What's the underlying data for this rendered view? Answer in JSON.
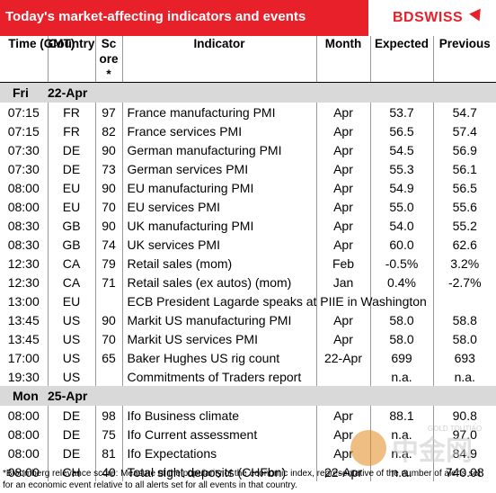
{
  "header": {
    "title": "Today's market-affecting indicators and events",
    "logo_part1": "BD",
    "logo_part2": "SWISS",
    "accent_color": "#e8202a"
  },
  "columns": {
    "time": "Time (GMT)",
    "country": "Country",
    "score": "Score*",
    "indicator": "Indicator",
    "month": "Month",
    "expected": "Expected",
    "previous": "Previous"
  },
  "days": [
    {
      "day": "Fri",
      "date": "22-Apr",
      "rows": [
        {
          "time": "07:15",
          "country": "FR",
          "score": "97",
          "indicator": "France manufacturing PMI",
          "month": "Apr",
          "expected": "53.7",
          "previous": "54.7"
        },
        {
          "time": "07:15",
          "country": "FR",
          "score": "82",
          "indicator": "France services PMI",
          "month": "Apr",
          "expected": "56.5",
          "previous": "57.4"
        },
        {
          "time": "07:30",
          "country": "DE",
          "score": "90",
          "indicator": "German manufacturing PMI",
          "month": "Apr",
          "expected": "54.5",
          "previous": "56.9"
        },
        {
          "time": "07:30",
          "country": "DE",
          "score": "73",
          "indicator": "German services PMI",
          "month": "Apr",
          "expected": "55.3",
          "previous": "56.1"
        },
        {
          "time": "08:00",
          "country": "EU",
          "score": "90",
          "indicator": "EU manufacturing PMI",
          "month": "Apr",
          "expected": "54.9",
          "previous": "56.5"
        },
        {
          "time": "08:00",
          "country": "EU",
          "score": "70",
          "indicator": "EU services PMI",
          "month": "Apr",
          "expected": "55.0",
          "previous": "55.6"
        },
        {
          "time": "08:30",
          "country": "GB",
          "score": "90",
          "indicator": "UK manufacturing PMI",
          "month": "Apr",
          "expected": "54.0",
          "previous": "55.2"
        },
        {
          "time": "08:30",
          "country": "GB",
          "score": "74",
          "indicator": "UK services PMI",
          "month": "Apr",
          "expected": "60.0",
          "previous": "62.6"
        },
        {
          "time": "12:30",
          "country": "CA",
          "score": "79",
          "indicator": "Retail sales (mom)",
          "month": "Feb",
          "expected": "-0.5%",
          "previous": "3.2%"
        },
        {
          "time": "12:30",
          "country": "CA",
          "score": "71",
          "indicator": "Retail sales (ex autos) (mom)",
          "month": "Jan",
          "expected": "0.4%",
          "previous": "-2.7%"
        },
        {
          "time": "13:00",
          "country": "EU",
          "score": "",
          "indicator": "ECB President Lagarde speaks at PIIE in Washington",
          "month": "",
          "expected": "",
          "previous": ""
        },
        {
          "time": "13:45",
          "country": "US",
          "score": "90",
          "indicator": "Markit US manufacturing PMI",
          "month": "Apr",
          "expected": "58.0",
          "previous": "58.8"
        },
        {
          "time": "13:45",
          "country": "US",
          "score": "70",
          "indicator": "Markit US services PMI",
          "month": "Apr",
          "expected": "58.0",
          "previous": "58.0"
        },
        {
          "time": "17:00",
          "country": "US",
          "score": "65",
          "indicator": "Baker Hughes US rig count",
          "month": "22-Apr",
          "expected": "699",
          "previous": "693"
        },
        {
          "time": "19:30",
          "country": "US",
          "score": "",
          "indicator": "Commitments of Traders  report",
          "month": "",
          "expected": "n.a.",
          "previous": "n.a."
        }
      ]
    },
    {
      "day": "Mon",
      "date": "25-Apr",
      "rows": [
        {
          "time": "08:00",
          "country": "DE",
          "score": "98",
          "indicator": "Ifo Business climate",
          "month": "Apr",
          "expected": "88.1",
          "previous": "90.8"
        },
        {
          "time": "08:00",
          "country": "DE",
          "score": "75",
          "indicator": "Ifo Current assessment",
          "month": "Apr",
          "expected": "n.a.",
          "previous": "97.0"
        },
        {
          "time": "08:00",
          "country": "DE",
          "score": "81",
          "indicator": "Ifo Expectations",
          "month": "Apr",
          "expected": "n.a.",
          "previous": "84.9"
        },
        {
          "time": "08:00",
          "country": "CH",
          "score": "40",
          "indicator": "Total sight deposits (CHFbn)",
          "month": "22-Apr",
          "expected": "n.a.",
          "previous": "740.08"
        }
      ]
    }
  ],
  "footnote": "*Bloomberg relevance score:  Measure of the popularity of the economic index, representative of the number of alerts set for an economic event relative to all alerts set for all events in that country.",
  "watermark": {
    "text": "中金网",
    "sub": "GOLD TOUTIAO"
  }
}
